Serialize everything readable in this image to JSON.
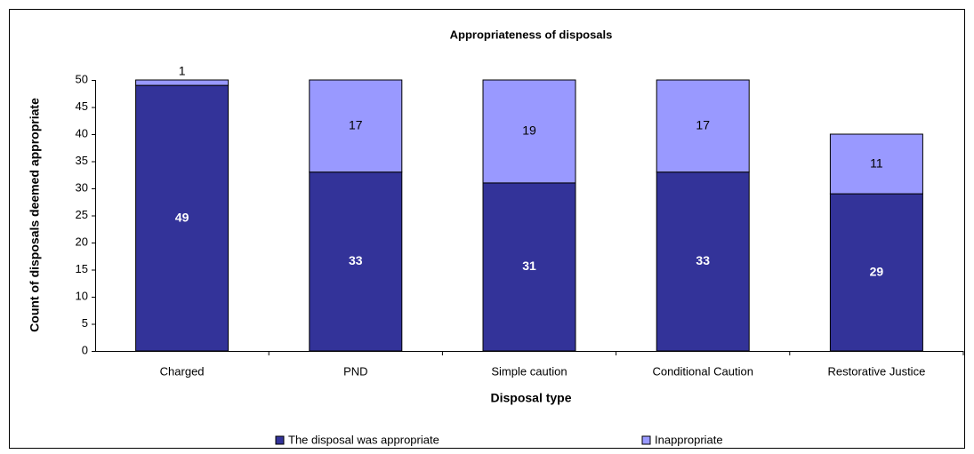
{
  "chart_data": {
    "type": "stacked_bar",
    "title": "Appropriateness of disposals",
    "xlabel": "Disposal type",
    "ylabel": "Count of disposals deemed appropriate",
    "categories": [
      "Charged",
      "PND",
      "Simple caution",
      "Conditional Caution",
      "Restorative Justice"
    ],
    "series": [
      {
        "name": "The disposal was appropriate",
        "color": "#333399",
        "values": [
          49,
          33,
          31,
          33,
          29
        ]
      },
      {
        "name": "Inappropriate",
        "color": "#9999ff",
        "values": [
          1,
          17,
          19,
          17,
          11
        ]
      }
    ],
    "ylim": [
      0,
      50
    ],
    "yticks": [
      0,
      5,
      10,
      15,
      20,
      25,
      30,
      35,
      40,
      45,
      50
    ],
    "grid": false
  }
}
